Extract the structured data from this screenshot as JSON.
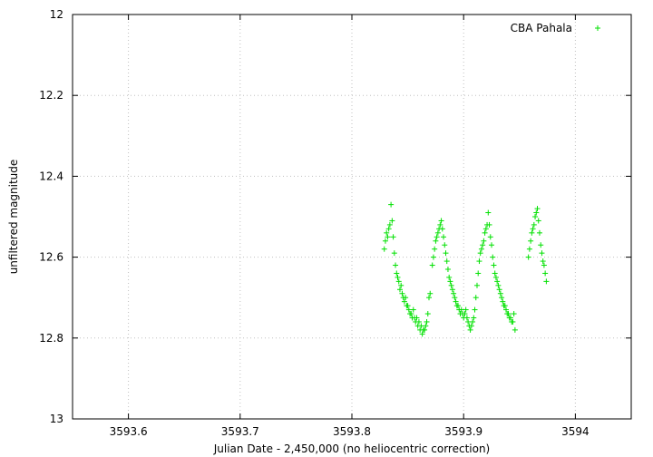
{
  "chart_data": {
    "type": "scatter",
    "xlabel": "Julian Date - 2,450,000 (no heliocentric correction)",
    "ylabel": "unfiltered magnitude",
    "xlim": [
      3593.55,
      3594.05
    ],
    "ylim": [
      12,
      13
    ],
    "y_inverted": true,
    "grid": true,
    "legend_position": "top-right",
    "x_ticks": [
      {
        "value": 3593.6,
        "label": "3593.6"
      },
      {
        "value": 3593.7,
        "label": "3593.7"
      },
      {
        "value": 3593.8,
        "label": "3593.8"
      },
      {
        "value": 3593.9,
        "label": "3593.9"
      },
      {
        "value": 3594.0,
        "label": "3594"
      }
    ],
    "y_ticks": [
      {
        "value": 12.0,
        "label": "12"
      },
      {
        "value": 12.2,
        "label": "12.2"
      },
      {
        "value": 12.4,
        "label": "12.4"
      },
      {
        "value": 12.6,
        "label": "12.6"
      },
      {
        "value": 12.8,
        "label": "12.8"
      },
      {
        "value": 13.0,
        "label": "13"
      }
    ],
    "series": [
      {
        "name": "CBA Pahala",
        "color": "#00e000",
        "marker": "plus",
        "points": [
          [
            3593.829,
            12.58
          ],
          [
            3593.83,
            12.56
          ],
          [
            3593.831,
            12.54
          ],
          [
            3593.832,
            12.55
          ],
          [
            3593.833,
            12.53
          ],
          [
            3593.834,
            12.52
          ],
          [
            3593.835,
            12.47
          ],
          [
            3593.836,
            12.51
          ],
          [
            3593.837,
            12.55
          ],
          [
            3593.838,
            12.59
          ],
          [
            3593.839,
            12.62
          ],
          [
            3593.84,
            12.64
          ],
          [
            3593.841,
            12.65
          ],
          [
            3593.842,
            12.66
          ],
          [
            3593.843,
            12.68
          ],
          [
            3593.844,
            12.67
          ],
          [
            3593.845,
            12.69
          ],
          [
            3593.846,
            12.7
          ],
          [
            3593.847,
            12.71
          ],
          [
            3593.848,
            12.7
          ],
          [
            3593.849,
            12.72
          ],
          [
            3593.85,
            12.72
          ],
          [
            3593.851,
            12.73
          ],
          [
            3593.852,
            12.74
          ],
          [
            3593.853,
            12.74
          ],
          [
            3593.854,
            12.75
          ],
          [
            3593.855,
            12.73
          ],
          [
            3593.856,
            12.75
          ],
          [
            3593.857,
            12.76
          ],
          [
            3593.858,
            12.75
          ],
          [
            3593.859,
            12.77
          ],
          [
            3593.86,
            12.76
          ],
          [
            3593.861,
            12.78
          ],
          [
            3593.862,
            12.77
          ],
          [
            3593.863,
            12.79
          ],
          [
            3593.864,
            12.78
          ],
          [
            3593.865,
            12.78
          ],
          [
            3593.866,
            12.77
          ],
          [
            3593.867,
            12.76
          ],
          [
            3593.868,
            12.74
          ],
          [
            3593.869,
            12.7
          ],
          [
            3593.87,
            12.69
          ],
          [
            3593.872,
            12.62
          ],
          [
            3593.873,
            12.6
          ],
          [
            3593.874,
            12.58
          ],
          [
            3593.875,
            12.56
          ],
          [
            3593.876,
            12.55
          ],
          [
            3593.877,
            12.54
          ],
          [
            3593.878,
            12.53
          ],
          [
            3593.879,
            12.52
          ],
          [
            3593.88,
            12.51
          ],
          [
            3593.881,
            12.53
          ],
          [
            3593.882,
            12.55
          ],
          [
            3593.883,
            12.57
          ],
          [
            3593.884,
            12.59
          ],
          [
            3593.885,
            12.61
          ],
          [
            3593.886,
            12.63
          ],
          [
            3593.887,
            12.65
          ],
          [
            3593.888,
            12.66
          ],
          [
            3593.889,
            12.67
          ],
          [
            3593.89,
            12.68
          ],
          [
            3593.891,
            12.69
          ],
          [
            3593.892,
            12.7
          ],
          [
            3593.893,
            12.71
          ],
          [
            3593.894,
            12.72
          ],
          [
            3593.895,
            12.72
          ],
          [
            3593.896,
            12.73
          ],
          [
            3593.897,
            12.74
          ],
          [
            3593.898,
            12.73
          ],
          [
            3593.899,
            12.74
          ],
          [
            3593.9,
            12.75
          ],
          [
            3593.901,
            12.74
          ],
          [
            3593.902,
            12.73
          ],
          [
            3593.903,
            12.75
          ],
          [
            3593.904,
            12.76
          ],
          [
            3593.905,
            12.77
          ],
          [
            3593.906,
            12.78
          ],
          [
            3593.907,
            12.77
          ],
          [
            3593.908,
            12.76
          ],
          [
            3593.909,
            12.75
          ],
          [
            3593.91,
            12.73
          ],
          [
            3593.911,
            12.7
          ],
          [
            3593.912,
            12.67
          ],
          [
            3593.913,
            12.64
          ],
          [
            3593.914,
            12.61
          ],
          [
            3593.915,
            12.59
          ],
          [
            3593.916,
            12.58
          ],
          [
            3593.917,
            12.57
          ],
          [
            3593.918,
            12.56
          ],
          [
            3593.919,
            12.54
          ],
          [
            3593.92,
            12.53
          ],
          [
            3593.921,
            12.52
          ],
          [
            3593.922,
            12.49
          ],
          [
            3593.923,
            12.52
          ],
          [
            3593.924,
            12.55
          ],
          [
            3593.925,
            12.57
          ],
          [
            3593.926,
            12.6
          ],
          [
            3593.927,
            12.62
          ],
          [
            3593.928,
            12.64
          ],
          [
            3593.929,
            12.65
          ],
          [
            3593.93,
            12.66
          ],
          [
            3593.931,
            12.67
          ],
          [
            3593.932,
            12.68
          ],
          [
            3593.933,
            12.69
          ],
          [
            3593.934,
            12.7
          ],
          [
            3593.935,
            12.71
          ],
          [
            3593.936,
            12.72
          ],
          [
            3593.937,
            12.72
          ],
          [
            3593.938,
            12.73
          ],
          [
            3593.939,
            12.74
          ],
          [
            3593.94,
            12.74
          ],
          [
            3593.941,
            12.75
          ],
          [
            3593.942,
            12.75
          ],
          [
            3593.943,
            12.76
          ],
          [
            3593.944,
            12.76
          ],
          [
            3593.945,
            12.74
          ],
          [
            3593.946,
            12.78
          ],
          [
            3593.958,
            12.6
          ],
          [
            3593.959,
            12.58
          ],
          [
            3593.96,
            12.56
          ],
          [
            3593.961,
            12.54
          ],
          [
            3593.962,
            12.53
          ],
          [
            3593.963,
            12.52
          ],
          [
            3593.964,
            12.5
          ],
          [
            3593.965,
            12.49
          ],
          [
            3593.966,
            12.48
          ],
          [
            3593.967,
            12.51
          ],
          [
            3593.968,
            12.54
          ],
          [
            3593.969,
            12.57
          ],
          [
            3593.97,
            12.59
          ],
          [
            3593.971,
            12.61
          ],
          [
            3593.972,
            12.62
          ],
          [
            3593.973,
            12.64
          ],
          [
            3593.974,
            12.66
          ]
        ]
      }
    ]
  }
}
